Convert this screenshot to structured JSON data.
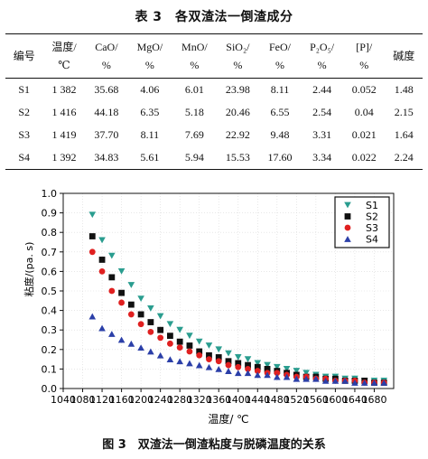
{
  "table": {
    "title": "表 3　各双渣法一倒渣成分",
    "headers": [
      {
        "name": "编号",
        "unit": ""
      },
      {
        "name": "温度/",
        "unit": "℃"
      },
      {
        "name": "CaO/",
        "unit": "%"
      },
      {
        "name": "MgO/",
        "unit": "%"
      },
      {
        "name": "MnO/",
        "unit": "%"
      },
      {
        "name": "SiO₂/",
        "unit": "%"
      },
      {
        "name": "FeO/",
        "unit": "%"
      },
      {
        "name": "P₂O₅/",
        "unit": "%"
      },
      {
        "name": "[P]/",
        "unit": "%"
      },
      {
        "name": "碱度",
        "unit": ""
      }
    ],
    "rows": [
      [
        "S1",
        "1 382",
        "35.68",
        "4.06",
        "6.01",
        "23.98",
        "8.11",
        "2.44",
        "0.052",
        "1.48"
      ],
      [
        "S2",
        "1 416",
        "44.18",
        "6.35",
        "5.18",
        "20.46",
        "6.55",
        "2.54",
        "0.04",
        "2.15"
      ],
      [
        "S3",
        "1 419",
        "37.70",
        "8.11",
        "7.69",
        "22.92",
        "9.48",
        "3.31",
        "0.021",
        "1.64"
      ],
      [
        "S4",
        "1 392",
        "34.83",
        "5.61",
        "5.94",
        "15.53",
        "17.60",
        "3.34",
        "0.022",
        "2.24"
      ]
    ]
  },
  "figure": {
    "caption": "图 3　双渣法一倒渣粘度与脱磷温度的关系"
  },
  "chart_data": {
    "type": "scatter",
    "xlabel": "温度/ ℃",
    "ylabel": "粘度/(pa. s)",
    "xlim": [
      1040,
      1720
    ],
    "ylim": [
      0,
      1.0
    ],
    "x_ticks": [
      "1040",
      "1080",
      "1120",
      "1160",
      "1200",
      "1240",
      "1280",
      "1320",
      "1360",
      "1400",
      "1440",
      "1480",
      "1520",
      "1560",
      "1600",
      "1640",
      "1680"
    ],
    "y_ticks": [
      "0.0",
      "0.1",
      "0.2",
      "0.3",
      "0.4",
      "0.5",
      "0.6",
      "0.7",
      "0.8",
      "0.9",
      "1.0"
    ],
    "legend_position": "top-right",
    "x": [
      1100,
      1120,
      1140,
      1160,
      1180,
      1200,
      1220,
      1240,
      1260,
      1280,
      1300,
      1320,
      1340,
      1360,
      1380,
      1400,
      1420,
      1440,
      1460,
      1480,
      1500,
      1520,
      1540,
      1560,
      1580,
      1600,
      1620,
      1640,
      1660,
      1680,
      1700
    ],
    "series": [
      {
        "name": "S1",
        "color": "#2a9d8f",
        "marker": "triangle-down",
        "values": [
          0.89,
          0.76,
          0.68,
          0.6,
          0.53,
          0.46,
          0.41,
          0.37,
          0.33,
          0.3,
          0.27,
          0.24,
          0.22,
          0.2,
          0.18,
          0.16,
          0.15,
          0.13,
          0.12,
          0.11,
          0.1,
          0.09,
          0.08,
          0.07,
          0.06,
          0.06,
          0.05,
          0.05,
          0.04,
          0.04,
          0.04
        ]
      },
      {
        "name": "S2",
        "color": "#111111",
        "marker": "square",
        "values": [
          0.78,
          0.66,
          0.57,
          0.49,
          0.43,
          0.38,
          0.34,
          0.3,
          0.27,
          0.24,
          0.22,
          0.19,
          0.17,
          0.16,
          0.14,
          0.13,
          0.12,
          0.11,
          0.1,
          0.09,
          0.08,
          0.07,
          0.06,
          0.06,
          0.05,
          0.05,
          0.04,
          0.04,
          0.04,
          0.03,
          0.03
        ]
      },
      {
        "name": "S3",
        "color": "#e02020",
        "marker": "circle",
        "values": [
          0.7,
          0.6,
          0.5,
          0.44,
          0.38,
          0.33,
          0.29,
          0.26,
          0.23,
          0.21,
          0.19,
          0.17,
          0.15,
          0.14,
          0.12,
          0.11,
          0.1,
          0.09,
          0.08,
          0.08,
          0.07,
          0.06,
          0.06,
          0.05,
          0.05,
          0.04,
          0.04,
          0.04,
          0.03,
          0.03,
          0.03
        ]
      },
      {
        "name": "S4",
        "color": "#2b3fa8",
        "marker": "triangle-up",
        "values": [
          0.37,
          0.31,
          0.28,
          0.25,
          0.23,
          0.21,
          0.19,
          0.17,
          0.15,
          0.14,
          0.13,
          0.12,
          0.11,
          0.1,
          0.09,
          0.08,
          0.08,
          0.07,
          0.07,
          0.06,
          0.06,
          0.05,
          0.05,
          0.05,
          0.04,
          0.04,
          0.04,
          0.03,
          0.03,
          0.03,
          0.03
        ]
      }
    ]
  }
}
